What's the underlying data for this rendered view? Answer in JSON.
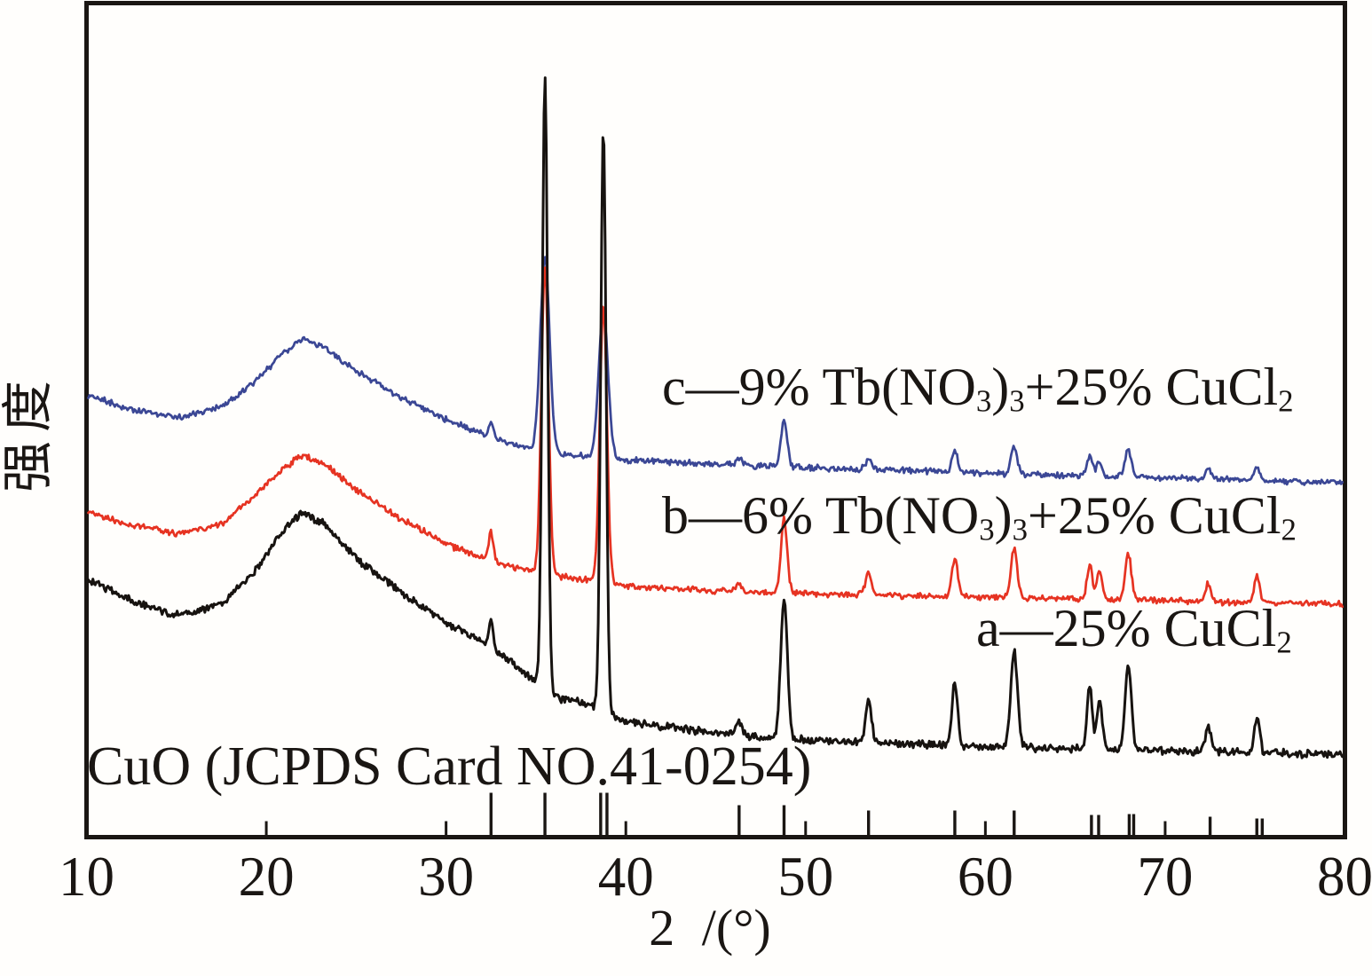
{
  "figure": {
    "background": "#fffefc",
    "frame_color": "#1a1613",
    "text_color": "#1a1613"
  },
  "chart_data": {
    "type": "line",
    "title": "",
    "xlabel": "2 /(°)",
    "ylabel": "强度",
    "grid": false,
    "legend_position": "inline-annotations",
    "x_axis": {
      "min": 10,
      "max": 80,
      "tick_step": 10,
      "tick_labels": [
        "10",
        "20",
        "30",
        "40",
        "50",
        "60",
        "70",
        "80"
      ]
    },
    "y_axis": {
      "tick_labels": [],
      "note": "intensity axis, no numeric ticks shown"
    },
    "series": [
      {
        "id": "a",
        "label_text": "a—25% CuCl₂",
        "label_parts": [
          {
            "text": "a—25% CuCl"
          },
          {
            "text": "2",
            "sub": true
          }
        ],
        "color": "#171310",
        "line_width": 3,
        "noise_amp": 5.5,
        "noise_seed": 101,
        "background_anchors": [
          [
            10,
            653
          ],
          [
            12.6,
            678
          ],
          [
            15.1,
            694
          ],
          [
            17.6,
            680
          ],
          [
            19.5,
            640
          ],
          [
            21.0,
            597
          ],
          [
            22.0,
            578
          ],
          [
            23.3,
            592
          ],
          [
            25.0,
            630
          ],
          [
            27.5,
            668
          ],
          [
            29.9,
            700
          ],
          [
            31.9,
            722
          ],
          [
            33.6,
            745
          ],
          [
            35.1,
            770
          ],
          [
            36.4,
            788
          ],
          [
            37.6,
            791
          ],
          [
            39.8,
            812
          ],
          [
            44.8,
            826
          ],
          [
            49.7,
            834
          ],
          [
            54.7,
            838
          ],
          [
            59.6,
            841
          ],
          [
            67.0,
            845
          ],
          [
            74.5,
            848
          ],
          [
            80,
            850
          ]
        ],
        "peaks": [
          [
            32.5,
            30,
            2.5
          ],
          [
            35.5,
            690,
            3.0
          ],
          [
            38.75,
            655,
            3.0
          ],
          [
            46.3,
            15,
            3.0
          ],
          [
            48.8,
            158,
            3.8
          ],
          [
            53.5,
            48,
            3.2
          ],
          [
            58.3,
            72,
            3.2
          ],
          [
            61.6,
            108,
            3.8
          ],
          [
            65.8,
            72,
            3.0
          ],
          [
            66.35,
            56,
            3.0
          ],
          [
            67.95,
            96,
            3.5
          ],
          [
            72.4,
            30,
            3.0
          ],
          [
            75.1,
            40,
            3.0
          ]
        ]
      },
      {
        "id": "b",
        "label_text": "b—6% Tb(NO₃)₃+25% CuCl₂",
        "label_parts": [
          {
            "text": "b—6% Tb(NO"
          },
          {
            "text": "3",
            "sub": true
          },
          {
            "text": ")"
          },
          {
            "text": "3",
            "sub": true
          },
          {
            "text": "+25% CuCl"
          },
          {
            "text": "2",
            "sub": true
          }
        ],
        "color": "#e63322",
        "line_width": 2.7,
        "noise_amp": 4.2,
        "noise_seed": 202,
        "background_anchors": [
          [
            10,
            577
          ],
          [
            12.6,
            592
          ],
          [
            15.1,
            601
          ],
          [
            17.6,
            590
          ],
          [
            19.5,
            556
          ],
          [
            21.0,
            527
          ],
          [
            22.0,
            513
          ],
          [
            23.3,
            524
          ],
          [
            25.0,
            552
          ],
          [
            27.5,
            585
          ],
          [
            29.9,
            612
          ],
          [
            31.9,
            628
          ],
          [
            33.6,
            638
          ],
          [
            35.1,
            645
          ],
          [
            36.4,
            650
          ],
          [
            37.6,
            653
          ],
          [
            39.8,
            660
          ],
          [
            44.8,
            666
          ],
          [
            49.7,
            669
          ],
          [
            54.7,
            671
          ],
          [
            59.6,
            673
          ],
          [
            67.0,
            676
          ],
          [
            74.5,
            679
          ],
          [
            80,
            681
          ]
        ],
        "peaks": [
          [
            32.5,
            32,
            2.5
          ],
          [
            35.5,
            345,
            4.0
          ],
          [
            38.75,
            315,
            4.0
          ],
          [
            46.3,
            10,
            3.0
          ],
          [
            48.8,
            84,
            3.5
          ],
          [
            53.5,
            26,
            3.2
          ],
          [
            58.3,
            44,
            3.2
          ],
          [
            61.6,
            56,
            3.5
          ],
          [
            65.8,
            38,
            3.0
          ],
          [
            66.35,
            32,
            3.0
          ],
          [
            67.95,
            52,
            3.5
          ],
          [
            72.4,
            20,
            3.0
          ],
          [
            75.1,
            29,
            3.0
          ]
        ]
      },
      {
        "id": "c",
        "label_text": "c—9% Tb(NO₃)₃+25% CuCl₂",
        "label_parts": [
          {
            "text": "c—9% Tb(NO"
          },
          {
            "text": "3",
            "sub": true
          },
          {
            "text": ")"
          },
          {
            "text": "3",
            "sub": true
          },
          {
            "text": "+25% CuCl"
          },
          {
            "text": "2",
            "sub": true
          }
        ],
        "color": "#3b4795",
        "line_width": 2.7,
        "noise_amp": 4.0,
        "noise_seed": 303,
        "background_anchors": [
          [
            10,
            445
          ],
          [
            12.6,
            462
          ],
          [
            15.1,
            470
          ],
          [
            17.6,
            458
          ],
          [
            19.5,
            428
          ],
          [
            21.0,
            397
          ],
          [
            22.0,
            381
          ],
          [
            23.3,
            392
          ],
          [
            25.0,
            418
          ],
          [
            27.5,
            448
          ],
          [
            29.9,
            472
          ],
          [
            31.9,
            488
          ],
          [
            33.6,
            500
          ],
          [
            35.1,
            508
          ],
          [
            36.4,
            512
          ],
          [
            37.6,
            514
          ],
          [
            39.8,
            518
          ],
          [
            44.8,
            523
          ],
          [
            49.7,
            527
          ],
          [
            54.7,
            530
          ],
          [
            59.6,
            533
          ],
          [
            67.0,
            537
          ],
          [
            74.5,
            541
          ],
          [
            80,
            544
          ]
        ],
        "peaks": [
          [
            32.5,
            16,
            2.5
          ],
          [
            35.5,
            220,
            5.2
          ],
          [
            38.75,
            166,
            5.2
          ],
          [
            46.3,
            8,
            3.0
          ],
          [
            48.8,
            52,
            3.5
          ],
          [
            53.5,
            13,
            3.2
          ],
          [
            58.3,
            24,
            3.2
          ],
          [
            61.6,
            30,
            3.5
          ],
          [
            65.8,
            21,
            3.0
          ],
          [
            66.35,
            16,
            3.0
          ],
          [
            67.95,
            31,
            3.5
          ],
          [
            72.4,
            12,
            3.0
          ],
          [
            75.1,
            16,
            3.0
          ]
        ]
      }
    ],
    "reference": {
      "label": "CuO (JCPDS Card NO.41-0254)",
      "color": "#1a1613",
      "lines": [
        [
          32.5,
          48
        ],
        [
          35.5,
          48
        ],
        [
          38.6,
          48
        ],
        [
          38.95,
          48
        ],
        [
          46.3,
          34
        ],
        [
          48.8,
          34
        ],
        [
          53.5,
          28
        ],
        [
          58.3,
          28
        ],
        [
          61.6,
          28
        ],
        [
          65.9,
          23
        ],
        [
          66.3,
          23
        ],
        [
          68.0,
          24
        ],
        [
          68.25,
          24
        ],
        [
          72.5,
          21
        ],
        [
          75.1,
          19
        ],
        [
          75.4,
          19
        ]
      ]
    }
  }
}
